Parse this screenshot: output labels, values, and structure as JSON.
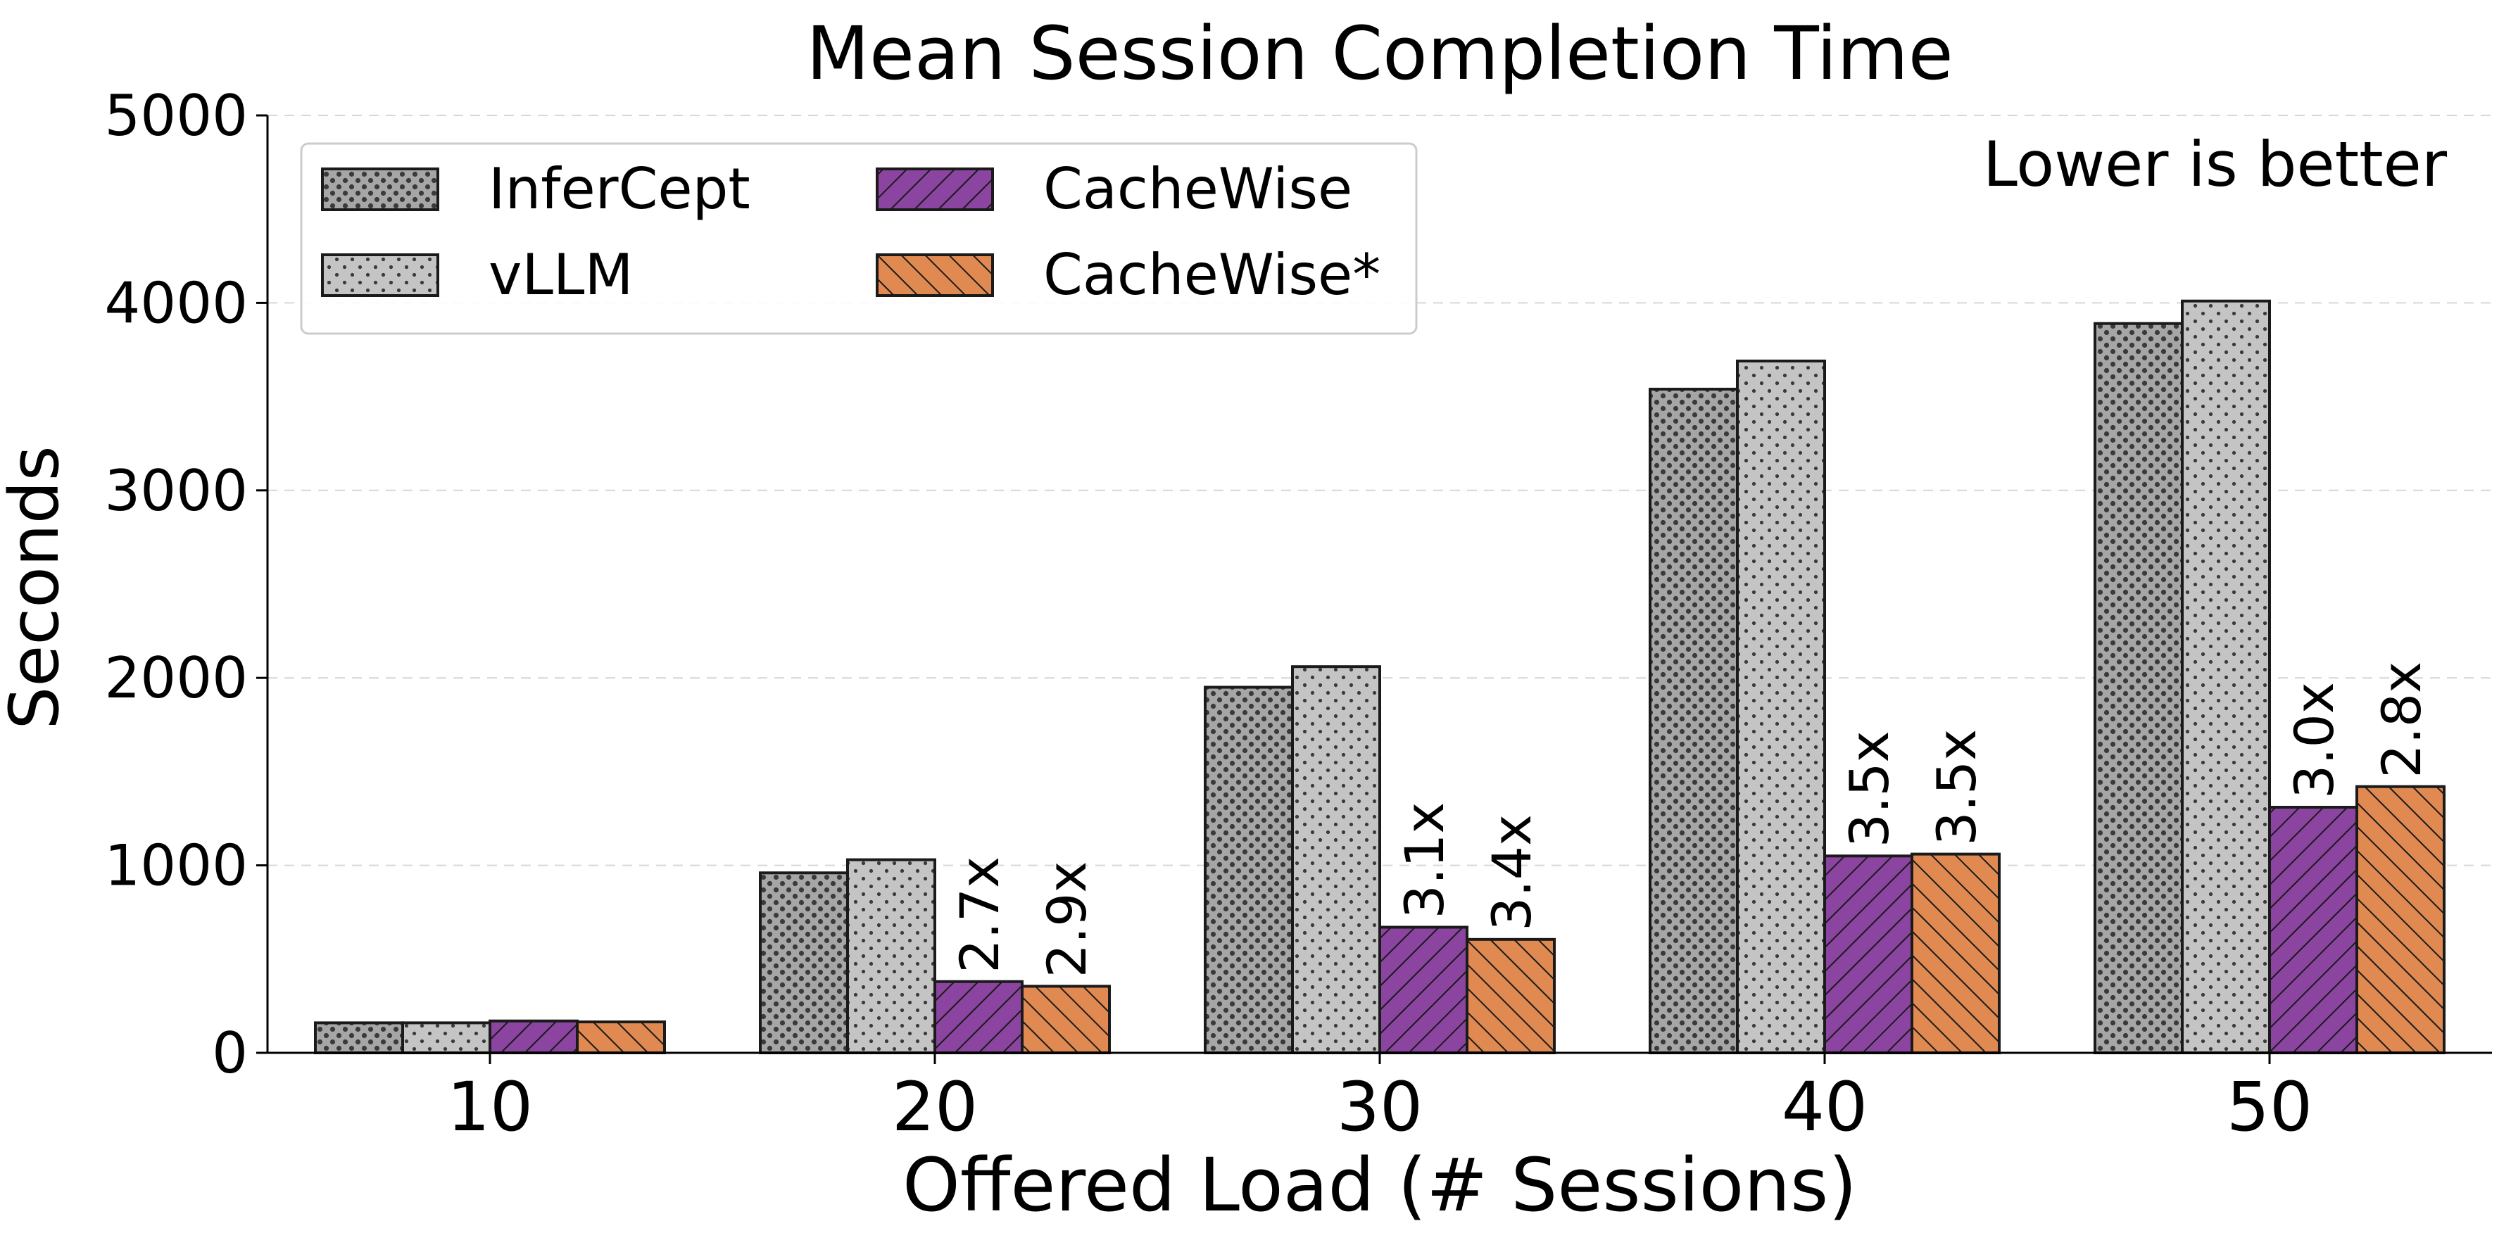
{
  "chart_data": {
    "type": "bar",
    "title": "Mean Session Completion Time",
    "xlabel": "Offered Load (# Sessions)",
    "ylabel": "Seconds",
    "annotation": "Lower is better",
    "categories": [
      "10",
      "20",
      "30",
      "40",
      "50"
    ],
    "ylim": [
      0,
      5000
    ],
    "yticks": [
      0,
      1000,
      2000,
      3000,
      4000,
      5000
    ],
    "grid": "horizontal dashed",
    "legend_position": "top-left",
    "legend_columns": 2,
    "series": [
      {
        "name": "InferCept",
        "color": "#a6a6a6",
        "pattern": "dense-dots",
        "values": [
          160,
          960,
          1950,
          3540,
          3890
        ],
        "labels": [
          "",
          "",
          "",
          "",
          ""
        ]
      },
      {
        "name": "vLLM",
        "color": "#c4c4c4",
        "pattern": "sparse-dots",
        "values": [
          160,
          1030,
          2060,
          3690,
          4010
        ],
        "labels": [
          "",
          "",
          "",
          "",
          ""
        ]
      },
      {
        "name": "CacheWise",
        "color": "#8b45a0",
        "pattern": "diagonal-hatch",
        "values": [
          170,
          380,
          670,
          1050,
          1310
        ],
        "labels": [
          "",
          "2.7x",
          "3.1x",
          "3.5x",
          "3.0x"
        ]
      },
      {
        "name": "CacheWise*",
        "color": "#e08a52",
        "pattern": "back-diagonal-hatch",
        "values": [
          165,
          355,
          605,
          1060,
          1420
        ],
        "labels": [
          "",
          "2.9x",
          "3.4x",
          "3.5x",
          "2.8x"
        ]
      }
    ]
  }
}
